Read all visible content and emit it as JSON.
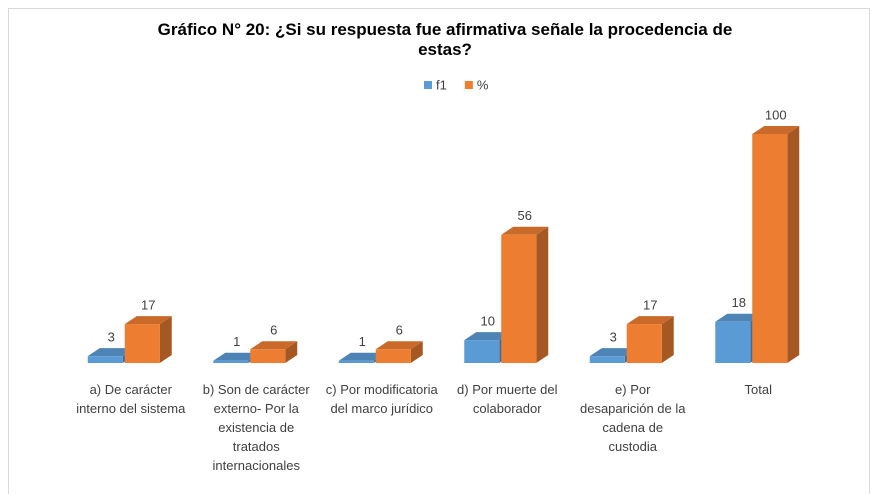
{
  "chart_data": {
    "type": "bar3d",
    "title": "Gráfico N° 20: ¿Si su respuesta fue afirmativa señale la procedencia de estas?",
    "categories": [
      "a) De carácter interno del sistema",
      "b) Son de carácter externo- Por la existencia de tratados internacionales",
      "c) Por modificatoria del marco jurídico",
      "d) Por muerte del colaborador",
      "e) Por desaparición de la cadena de custodia",
      "Total"
    ],
    "series": [
      {
        "name": "f1",
        "color": "#5b9bd5",
        "values": [
          3,
          1,
          1,
          10,
          3,
          18
        ]
      },
      {
        "name": "%",
        "color": "#ed7d31",
        "values": [
          17,
          6,
          6,
          56,
          17,
          100
        ]
      }
    ],
    "legend": "top"
  }
}
